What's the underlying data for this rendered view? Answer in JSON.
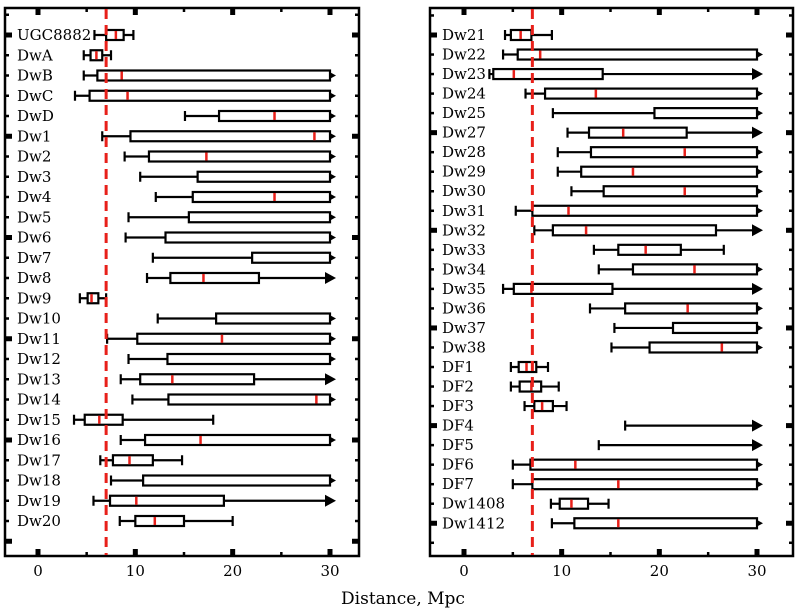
{
  "chart_data": {
    "type": "box-range",
    "xlabel": "Distance, Mpc",
    "xlim": [
      -3.5,
      33
    ],
    "xticks": [
      0,
      10,
      20,
      30
    ],
    "reference_line": 7.0,
    "colors": {
      "frame": "#000000",
      "reference": "#e8201a",
      "median": "#e8201a"
    },
    "panels": [
      {
        "id": "left",
        "rows": [
          {
            "name": "UGC8882",
            "wmin": 5.8,
            "q1": 7.0,
            "med": 8.0,
            "q3": 8.8,
            "wmax": 9.8,
            "arrow": false
          },
          {
            "name": "DwA",
            "wmin": 4.7,
            "q1": 5.4,
            "med": 6.0,
            "q3": 6.6,
            "wmax": 7.5,
            "arrow": false
          },
          {
            "name": "DwB",
            "wmin": 4.7,
            "q1": 6.1,
            "med": 8.6,
            "q3": 30,
            "wmax": 30,
            "arrow": true
          },
          {
            "name": "DwC",
            "wmin": 3.8,
            "q1": 5.3,
            "med": 9.2,
            "q3": 30,
            "wmax": 30,
            "arrow": true
          },
          {
            "name": "DwD",
            "wmin": 15.1,
            "q1": 18.6,
            "med": 24.3,
            "q3": 30,
            "wmax": 30,
            "arrow": true
          },
          {
            "name": "Dw1",
            "wmin": 6.6,
            "q1": 9.5,
            "med": 28.4,
            "q3": 30,
            "wmax": 30,
            "arrow": true
          },
          {
            "name": "Dw2",
            "wmin": 8.9,
            "q1": 11.4,
            "med": 17.3,
            "q3": 30,
            "wmax": 30,
            "arrow": true
          },
          {
            "name": "Dw3",
            "wmin": 10.5,
            "q1": 16.4,
            "med": 30,
            "q3": 30,
            "wmax": 30,
            "arrow": true
          },
          {
            "name": "Dw4",
            "wmin": 12.1,
            "q1": 15.9,
            "med": 24.3,
            "q3": 30,
            "wmax": 30,
            "arrow": true
          },
          {
            "name": "Dw5",
            "wmin": 9.3,
            "q1": 15.5,
            "med": 30,
            "q3": 30,
            "wmax": 30,
            "arrow": true
          },
          {
            "name": "Dw6",
            "wmin": 9.0,
            "q1": 13.1,
            "med": 30,
            "q3": 30,
            "wmax": 30,
            "arrow": true
          },
          {
            "name": "Dw7",
            "wmin": 11.8,
            "q1": 22.0,
            "med": 30,
            "q3": 30,
            "wmax": 30,
            "arrow": true
          },
          {
            "name": "Dw8",
            "wmin": 11.2,
            "q1": 13.6,
            "med": 17.0,
            "q3": 22.7,
            "wmax": 30,
            "arrow": true
          },
          {
            "name": "Dw9",
            "wmin": 4.3,
            "q1": 5.1,
            "med": 5.5,
            "q3": 6.2,
            "wmax": 7.0,
            "arrow": false
          },
          {
            "name": "Dw10",
            "wmin": 12.3,
            "q1": 18.3,
            "med": 30,
            "q3": 30,
            "wmax": 30,
            "arrow": true
          },
          {
            "name": "Dw11",
            "wmin": 7.1,
            "q1": 10.2,
            "med": 18.9,
            "q3": 30,
            "wmax": 30,
            "arrow": true
          },
          {
            "name": "Dw12",
            "wmin": 9.3,
            "q1": 13.3,
            "med": 30,
            "q3": 30,
            "wmax": 30,
            "arrow": true
          },
          {
            "name": "Dw13",
            "wmin": 8.5,
            "q1": 10.5,
            "med": 13.8,
            "q3": 22.2,
            "wmax": 30,
            "arrow": true
          },
          {
            "name": "Dw14",
            "wmin": 9.7,
            "q1": 13.4,
            "med": 28.6,
            "q3": 30,
            "wmax": 30,
            "arrow": true
          },
          {
            "name": "Dw15",
            "wmin": 3.7,
            "q1": 4.8,
            "med": 6.3,
            "q3": 8.7,
            "wmax": 18.0,
            "arrow": false
          },
          {
            "name": "Dw16",
            "wmin": 8.5,
            "q1": 11.0,
            "med": 16.7,
            "q3": 30,
            "wmax": 30,
            "arrow": true
          },
          {
            "name": "Dw17",
            "wmin": 6.4,
            "q1": 7.7,
            "med": 9.4,
            "q3": 11.8,
            "wmax": 14.8,
            "arrow": false
          },
          {
            "name": "Dw18",
            "wmin": 7.5,
            "q1": 10.8,
            "med": 30,
            "q3": 30,
            "wmax": 30,
            "arrow": true
          },
          {
            "name": "Dw19",
            "wmin": 5.7,
            "q1": 7.4,
            "med": 10.1,
            "q3": 19.1,
            "wmax": 30,
            "arrow": true
          },
          {
            "name": "Dw20",
            "wmin": 8.4,
            "q1": 10.0,
            "med": 12.0,
            "q3": 15.0,
            "wmax": 20.0,
            "arrow": false
          }
        ]
      },
      {
        "id": "right",
        "rows": [
          {
            "name": "Dw21",
            "wmin": 4.2,
            "q1": 4.8,
            "med": 5.8,
            "q3": 6.9,
            "wmax": 9.0,
            "arrow": false
          },
          {
            "name": "Dw22",
            "wmin": 4.0,
            "q1": 5.5,
            "med": 7.8,
            "q3": 30,
            "wmax": 30,
            "arrow": true
          },
          {
            "name": "Dw23",
            "wmin": 2.6,
            "q1": 3.0,
            "med": 5.1,
            "q3": 14.2,
            "wmax": 30,
            "arrow": true
          },
          {
            "name": "Dw24",
            "wmin": 6.3,
            "q1": 8.3,
            "med": 13.5,
            "q3": 30,
            "wmax": 30,
            "arrow": true
          },
          {
            "name": "Dw25",
            "wmin": 9.1,
            "q1": 19.5,
            "med": 30,
            "q3": 30,
            "wmax": 30,
            "arrow": true
          },
          {
            "name": "Dw27",
            "wmin": 10.6,
            "q1": 12.8,
            "med": 16.3,
            "q3": 22.8,
            "wmax": 30,
            "arrow": true
          },
          {
            "name": "Dw28",
            "wmin": 9.6,
            "q1": 13.0,
            "med": 22.6,
            "q3": 30,
            "wmax": 30,
            "arrow": true
          },
          {
            "name": "Dw29",
            "wmin": 9.6,
            "q1": 12.0,
            "med": 17.3,
            "q3": 30,
            "wmax": 30,
            "arrow": true
          },
          {
            "name": "Dw30",
            "wmin": 11.0,
            "q1": 14.3,
            "med": 22.6,
            "q3": 30,
            "wmax": 30,
            "arrow": true
          },
          {
            "name": "Dw31",
            "wmin": 5.3,
            "q1": 7.0,
            "med": 10.7,
            "q3": 30,
            "wmax": 30,
            "arrow": true
          },
          {
            "name": "Dw32",
            "wmin": 7.2,
            "q1": 9.1,
            "med": 12.5,
            "q3": 25.8,
            "wmax": 30,
            "arrow": true
          },
          {
            "name": "Dw33",
            "wmin": 13.3,
            "q1": 15.8,
            "med": 18.6,
            "q3": 22.2,
            "wmax": 26.6,
            "arrow": false
          },
          {
            "name": "Dw34",
            "wmin": 13.8,
            "q1": 17.3,
            "med": 23.6,
            "q3": 30,
            "wmax": 30,
            "arrow": true
          },
          {
            "name": "Dw35",
            "wmin": 4.0,
            "q1": 5.1,
            "med": 6.9,
            "q3": 15.2,
            "wmax": 30,
            "arrow": true
          },
          {
            "name": "Dw36",
            "wmin": 12.9,
            "q1": 16.5,
            "med": 22.9,
            "q3": 30,
            "wmax": 30,
            "arrow": true
          },
          {
            "name": "Dw37",
            "wmin": 15.4,
            "q1": 21.4,
            "med": 30,
            "q3": 30,
            "wmax": 30,
            "arrow": true
          },
          {
            "name": "Dw38",
            "wmin": 15.1,
            "q1": 19.0,
            "med": 26.4,
            "q3": 30,
            "wmax": 30,
            "arrow": true
          },
          {
            "name": "DF1",
            "wmin": 4.8,
            "q1": 5.6,
            "med": 6.4,
            "q3": 7.4,
            "wmax": 8.6,
            "arrow": false
          },
          {
            "name": "DF2",
            "wmin": 4.8,
            "q1": 5.7,
            "med": 6.9,
            "q3": 7.9,
            "wmax": 9.7,
            "arrow": false
          },
          {
            "name": "DF3",
            "wmin": 6.2,
            "q1": 7.2,
            "med": 8.0,
            "q3": 9.1,
            "wmax": 10.5,
            "arrow": false
          },
          {
            "name": "DF4",
            "wmin": 16.5,
            "q1": null,
            "med": null,
            "q3": null,
            "wmax": 30,
            "arrow": true
          },
          {
            "name": "DF5",
            "wmin": 13.8,
            "q1": null,
            "med": null,
            "q3": null,
            "wmax": 30,
            "arrow": true
          },
          {
            "name": "DF6",
            "wmin": 5.0,
            "q1": 6.8,
            "med": 11.4,
            "q3": 30,
            "wmax": 30,
            "arrow": true
          },
          {
            "name": "DF7",
            "wmin": 5.0,
            "q1": 7.0,
            "med": 15.8,
            "q3": 30,
            "wmax": 30,
            "arrow": true
          },
          {
            "name": "Dw1408",
            "wmin": 8.9,
            "q1": 9.8,
            "med": 11.0,
            "q3": 12.7,
            "wmax": 14.8,
            "arrow": false
          },
          {
            "name": "Dw1412",
            "wmin": 9.0,
            "q1": 11.3,
            "med": 15.8,
            "q3": 30,
            "wmax": 30,
            "arrow": true
          }
        ]
      }
    ]
  }
}
